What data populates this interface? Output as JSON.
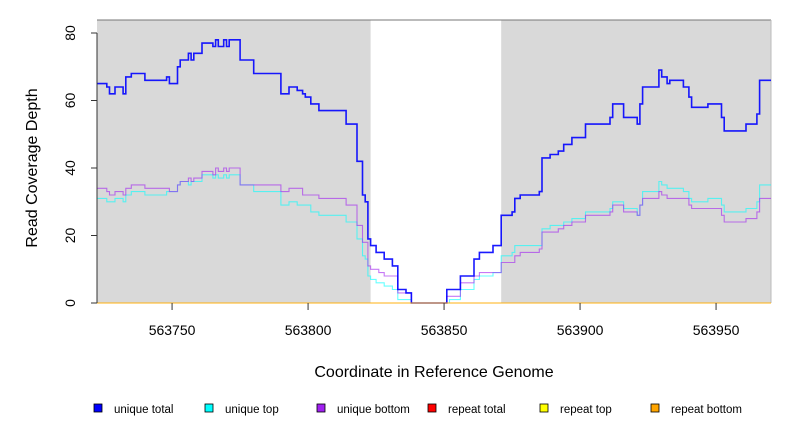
{
  "chart_data": {
    "type": "line",
    "step": true,
    "title": "",
    "xlabel": "Coordinate in Reference Genome",
    "ylabel": "Read Coverage Depth",
    "xlim": [
      563722.4,
      563970.2
    ],
    "ylim": [
      0,
      84
    ],
    "x_ticks": [
      563750,
      563800,
      563850,
      563900,
      563950
    ],
    "x_tick_labels": [
      "563750",
      "563800",
      "563850",
      "563900",
      "563950"
    ],
    "y_ticks": [
      0,
      20,
      40,
      60,
      80
    ],
    "y_tick_labels": [
      "0",
      "20",
      "40",
      "60",
      "80"
    ],
    "shaded_regions": [
      [
        563722.4,
        563823
      ],
      [
        563871,
        563970.2
      ]
    ],
    "shade_color": "#d9d9d9",
    "x_end": 563970.2,
    "legend_position": "bottom",
    "series": [
      {
        "name": "unique top",
        "color": "#00ffff",
        "points": [
          [
            563722,
            31
          ],
          [
            563726,
            30
          ],
          [
            563729,
            31
          ],
          [
            563732,
            30
          ],
          [
            563733,
            32
          ],
          [
            563735,
            33
          ],
          [
            563740,
            32
          ],
          [
            563748,
            33
          ],
          [
            563752,
            35
          ],
          [
            563753,
            36
          ],
          [
            563756,
            35
          ],
          [
            563757,
            36
          ],
          [
            563761,
            38
          ],
          [
            563765,
            37
          ],
          [
            563766,
            38
          ],
          [
            563767,
            37
          ],
          [
            563769,
            38
          ],
          [
            563770,
            37
          ],
          [
            563771,
            38
          ],
          [
            563775,
            35
          ],
          [
            563780,
            33
          ],
          [
            563790,
            29
          ],
          [
            563793,
            30
          ],
          [
            563796,
            29
          ],
          [
            563801,
            27
          ],
          [
            563804,
            26
          ],
          [
            563814,
            24
          ],
          [
            563818,
            19
          ],
          [
            563820,
            14
          ],
          [
            563821,
            13
          ],
          [
            563822,
            8
          ],
          [
            563823,
            7
          ],
          [
            563825,
            6
          ],
          [
            563828,
            5
          ],
          [
            563831,
            4
          ],
          [
            563833,
            1
          ],
          [
            563838,
            0
          ],
          [
            563852,
            1
          ],
          [
            563856,
            4
          ],
          [
            563861,
            7
          ],
          [
            563863,
            8
          ],
          [
            563868,
            9
          ],
          [
            563871,
            14
          ],
          [
            563875,
            15
          ],
          [
            563876,
            17
          ],
          [
            563886,
            22
          ],
          [
            563889,
            23
          ],
          [
            563894,
            24
          ],
          [
            563897,
            25
          ],
          [
            563902,
            27
          ],
          [
            563911,
            28
          ],
          [
            563912,
            30
          ],
          [
            563916,
            28
          ],
          [
            563921,
            26
          ],
          [
            563922,
            29
          ],
          [
            563923,
            33
          ],
          [
            563929,
            36
          ],
          [
            563930,
            35
          ],
          [
            563932,
            34
          ],
          [
            563938,
            33
          ],
          [
            563940,
            31
          ],
          [
            563941,
            30
          ],
          [
            563947,
            31
          ],
          [
            563952,
            29
          ],
          [
            563953,
            27
          ],
          [
            563961,
            28
          ],
          [
            563965,
            30
          ],
          [
            563966,
            35
          ]
        ]
      },
      {
        "name": "unique bottom",
        "color": "#a020f0",
        "points": [
          [
            563722,
            34
          ],
          [
            563726,
            33
          ],
          [
            563727,
            32
          ],
          [
            563729,
            33
          ],
          [
            563732,
            32
          ],
          [
            563733,
            34
          ],
          [
            563735,
            35
          ],
          [
            563740,
            34
          ],
          [
            563749,
            33
          ],
          [
            563752,
            35
          ],
          [
            563753,
            36
          ],
          [
            563756,
            37
          ],
          [
            563757,
            36
          ],
          [
            563758,
            37
          ],
          [
            563761,
            39
          ],
          [
            563765,
            38
          ],
          [
            563766,
            40
          ],
          [
            563767,
            39
          ],
          [
            563769,
            40
          ],
          [
            563770,
            39
          ],
          [
            563771,
            40
          ],
          [
            563775,
            35
          ],
          [
            563790,
            33
          ],
          [
            563793,
            34
          ],
          [
            563798,
            32
          ],
          [
            563804,
            31
          ],
          [
            563814,
            29
          ],
          [
            563818,
            23
          ],
          [
            563820,
            18
          ],
          [
            563822,
            11
          ],
          [
            563823,
            10
          ],
          [
            563826,
            9
          ],
          [
            563828,
            8
          ],
          [
            563833,
            3
          ],
          [
            563838,
            0
          ],
          [
            563851,
            2
          ],
          [
            563856,
            6
          ],
          [
            563861,
            8
          ],
          [
            563863,
            9
          ],
          [
            563871,
            12
          ],
          [
            563876,
            14
          ],
          [
            563878,
            15
          ],
          [
            563885,
            16
          ],
          [
            563886,
            21
          ],
          [
            563892,
            22
          ],
          [
            563894,
            23
          ],
          [
            563897,
            24
          ],
          [
            563902,
            26
          ],
          [
            563911,
            27
          ],
          [
            563912,
            29
          ],
          [
            563916,
            27
          ],
          [
            563921,
            26
          ],
          [
            563922,
            29
          ],
          [
            563923,
            31
          ],
          [
            563929,
            33
          ],
          [
            563930,
            32
          ],
          [
            563932,
            31
          ],
          [
            563940,
            29
          ],
          [
            563941,
            28
          ],
          [
            563952,
            26
          ],
          [
            563953,
            24
          ],
          [
            563961,
            25
          ],
          [
            563965,
            27
          ],
          [
            563966,
            31
          ]
        ]
      },
      {
        "name": "unique total",
        "color": "#0000ff",
        "points": [
          [
            563722,
            65
          ],
          [
            563726,
            64
          ],
          [
            563727,
            62
          ],
          [
            563729,
            64
          ],
          [
            563732,
            62
          ],
          [
            563733,
            67
          ],
          [
            563735,
            68
          ],
          [
            563740,
            66
          ],
          [
            563748,
            67
          ],
          [
            563749,
            65
          ],
          [
            563752,
            70
          ],
          [
            563753,
            72
          ],
          [
            563756,
            74
          ],
          [
            563757,
            72
          ],
          [
            563758,
            74
          ],
          [
            563761,
            77
          ],
          [
            563765,
            76
          ],
          [
            563766,
            78
          ],
          [
            563767,
            76
          ],
          [
            563769,
            78
          ],
          [
            563770,
            76
          ],
          [
            563771,
            78
          ],
          [
            563775,
            72
          ],
          [
            563780,
            68
          ],
          [
            563790,
            62
          ],
          [
            563793,
            64
          ],
          [
            563796,
            63
          ],
          [
            563798,
            62
          ],
          [
            563799,
            61
          ],
          [
            563801,
            59
          ],
          [
            563804,
            57
          ],
          [
            563814,
            53
          ],
          [
            563818,
            42
          ],
          [
            563820,
            32
          ],
          [
            563821,
            30
          ],
          [
            563822,
            19
          ],
          [
            563823,
            17
          ],
          [
            563825,
            15
          ],
          [
            563828,
            13
          ],
          [
            563831,
            11
          ],
          [
            563833,
            4
          ],
          [
            563836,
            3
          ],
          [
            563838,
            0
          ],
          [
            563851,
            4
          ],
          [
            563856,
            8
          ],
          [
            563861,
            13
          ],
          [
            563863,
            15
          ],
          [
            563868,
            17
          ],
          [
            563871,
            26
          ],
          [
            563875,
            27
          ],
          [
            563876,
            31
          ],
          [
            563878,
            32
          ],
          [
            563885,
            33
          ],
          [
            563886,
            43
          ],
          [
            563889,
            44
          ],
          [
            563892,
            45
          ],
          [
            563894,
            47
          ],
          [
            563897,
            49
          ],
          [
            563902,
            53
          ],
          [
            563911,
            55
          ],
          [
            563912,
            59
          ],
          [
            563916,
            55
          ],
          [
            563921,
            53
          ],
          [
            563922,
            59
          ],
          [
            563923,
            64
          ],
          [
            563929,
            69
          ],
          [
            563930,
            67
          ],
          [
            563932,
            65
          ],
          [
            563933,
            66
          ],
          [
            563938,
            64
          ],
          [
            563940,
            61
          ],
          [
            563941,
            58
          ],
          [
            563947,
            59
          ],
          [
            563952,
            55
          ],
          [
            563953,
            51
          ],
          [
            563961,
            53
          ],
          [
            563965,
            56
          ],
          [
            563966,
            66
          ]
        ]
      },
      {
        "name": "repeat total",
        "color": "#ff0000",
        "points": [
          [
            563722,
            0
          ]
        ]
      },
      {
        "name": "repeat top",
        "color": "#ffff00",
        "points": [
          [
            563722,
            0
          ]
        ]
      },
      {
        "name": "repeat bottom",
        "color": "#ffa500",
        "points": [
          [
            563722,
            0
          ]
        ]
      }
    ],
    "legend": [
      {
        "label": "unique total",
        "color": "#0000ff"
      },
      {
        "label": "unique top",
        "color": "#00ffff"
      },
      {
        "label": "unique bottom",
        "color": "#a020f0"
      },
      {
        "label": "repeat total",
        "color": "#ff0000"
      },
      {
        "label": "repeat top",
        "color": "#ffff00"
      },
      {
        "label": "repeat bottom",
        "color": "#ffa500"
      }
    ]
  }
}
